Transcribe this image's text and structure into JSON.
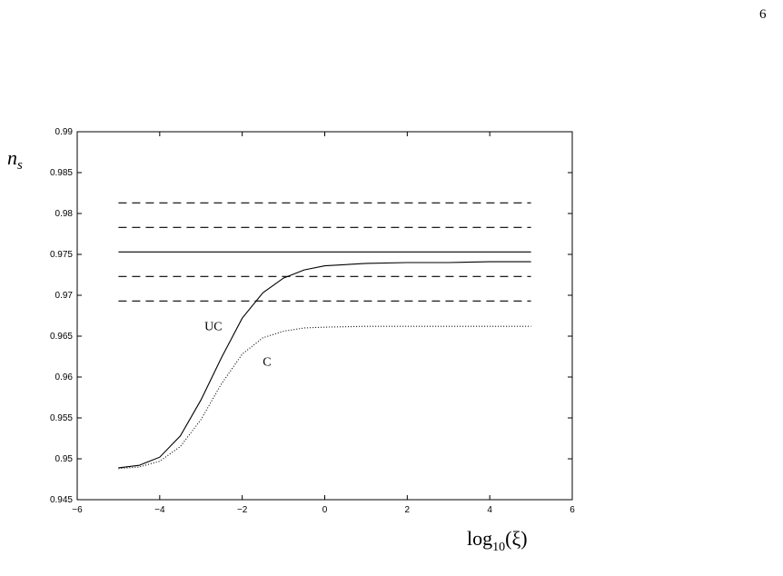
{
  "page_number": "6",
  "chart_data": {
    "type": "line",
    "y_label": {
      "base": "n",
      "sub": "s"
    },
    "x_label": {
      "base": "log",
      "sub": "10",
      "after": "(ξ)"
    },
    "xlim": [
      -6,
      6
    ],
    "xticks": [
      {
        "value": -6,
        "label": "−6"
      },
      {
        "value": -4,
        "label": "−4"
      },
      {
        "value": -2,
        "label": "−2"
      },
      0,
      2,
      4,
      6
    ],
    "ylim": [
      0.945,
      0.99
    ],
    "yticks": [
      0.945,
      0.95,
      0.955,
      0.96,
      0.965,
      0.97,
      0.975,
      0.98,
      0.985,
      0.99
    ],
    "series": [
      {
        "color": "#000",
        "dash": "dashed",
        "x": [
          -5,
          5
        ],
        "values": [
          0.9813,
          0.9813
        ]
      },
      {
        "color": "#000",
        "dash": "dashed",
        "x": [
          -5,
          5
        ],
        "values": [
          0.9783,
          0.9783
        ]
      },
      {
        "color": "#000",
        "dash": "solid",
        "x": [
          -5,
          5
        ],
        "values": [
          0.9753,
          0.9753
        ]
      },
      {
        "color": "#000",
        "dash": "dashed",
        "x": [
          -5,
          5
        ],
        "values": [
          0.9723,
          0.9723
        ]
      },
      {
        "color": "#000",
        "dash": "dashed",
        "x": [
          -5,
          5
        ],
        "values": [
          0.9693,
          0.9693
        ]
      },
      {
        "color": "#000",
        "dash": "solid",
        "x": [
          -5,
          -4.5,
          -4,
          -3.5,
          -3,
          -2.5,
          -2,
          -1.5,
          -1,
          -0.5,
          0,
          1,
          2,
          3,
          4,
          5
        ],
        "values": [
          0.9489,
          0.9492,
          0.9502,
          0.9528,
          0.9572,
          0.9624,
          0.9672,
          0.9703,
          0.9721,
          0.9731,
          0.9736,
          0.9739,
          0.974,
          0.974,
          0.9741,
          0.9741
        ]
      },
      {
        "color": "#000",
        "dash": "dotted",
        "x": [
          -5,
          -4.5,
          -4,
          -3.5,
          -3,
          -2.5,
          -2,
          -1.5,
          -1,
          -0.5,
          0,
          1,
          2,
          3,
          4,
          5
        ],
        "values": [
          0.9488,
          0.949,
          0.9497,
          0.9515,
          0.9548,
          0.9592,
          0.9628,
          0.9648,
          0.9656,
          0.966,
          0.9661,
          0.9662,
          0.9662,
          0.9662,
          0.9662,
          0.9662
        ]
      }
    ],
    "annotations": [
      {
        "text": "UC",
        "x": -2.7,
        "y": 0.9657
      },
      {
        "text": "C",
        "x": -1.4,
        "y": 0.9614
      }
    ]
  }
}
